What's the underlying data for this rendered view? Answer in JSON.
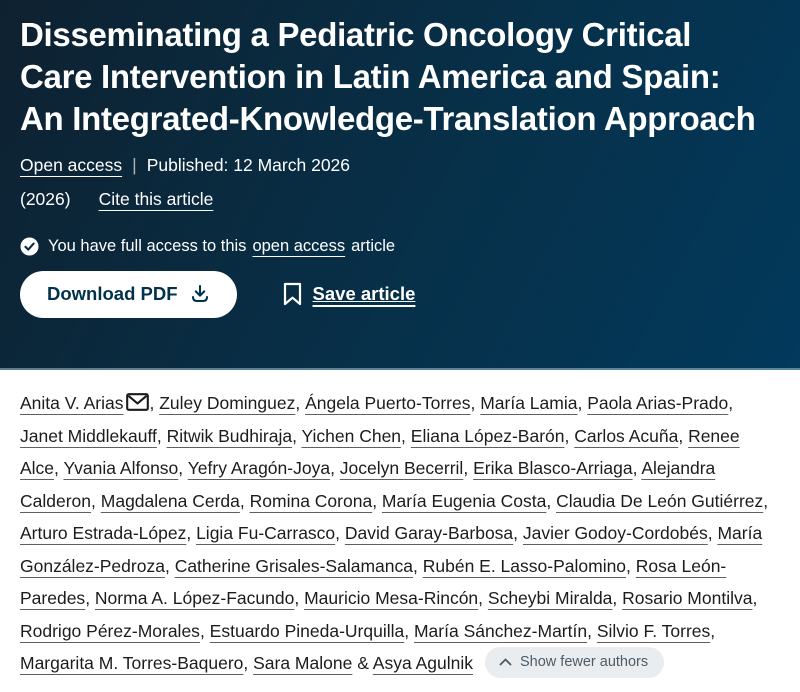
{
  "header": {
    "title": "Disseminating a Pediatric Oncology Critical Care Intervention in Latin America and Spain: An Integrated-Knowledge-Translation Approach",
    "access_type": "Open access",
    "separator": "|",
    "published_text": "Published: 12 March 2026",
    "year": "(2026)",
    "cite_link": "Cite this article",
    "access_note_prefix": "You have full access to this",
    "access_note_link": "open access",
    "access_note_suffix": "article",
    "download_button": "Download PDF",
    "save_button": "Save article"
  },
  "authors": {
    "list": [
      "Anita V. Arias",
      "Zuley Dominguez",
      "Ángela Puerto-Torres",
      "María Lamia",
      "Paola Arias-Prado",
      "Janet Middlekauff",
      "Ritwik Budhiraja",
      "Yichen Chen",
      "Eliana López-Barón",
      "Carlos Acuña",
      "Renee Alce",
      "Yvania Alfonso",
      "Yefry Aragón-Joya",
      "Jocelyn Becerril",
      "Erika Blasco-Arriaga",
      "Alejandra Calderon",
      "Magdalena Cerda",
      "Romina Corona",
      "María Eugenia Costa",
      "Claudia De León Gutiérrez",
      "Arturo Estrada-López",
      "Ligia Fu-Carrasco",
      "David Garay-Barbosa",
      "Javier Godoy-Cordobés",
      "María González-Pedroza",
      "Catherine Grisales-Salamanca",
      "Rubén E. Lasso-Palomino",
      "Rosa León-Paredes",
      "Norma A. López-Facundo",
      "Mauricio Mesa-Rincón",
      "Scheybi Miralda",
      "Rosario Montilva",
      "Rodrigo Pérez-Morales",
      "Estuardo Pineda-Urquilla",
      "María Sánchez-Martín",
      "Silvio F. Torres",
      "Margarita M. Torres-Baquero",
      "Sara Malone",
      "Asya Agulnik"
    ],
    "corresponding_index": 0,
    "last_separator": "&",
    "show_fewer_label": "Show fewer authors"
  },
  "colors": {
    "header_bg_start": "#0e2130",
    "header_bg_mid": "#073049",
    "header_bg_end": "#02395c",
    "button_text": "#01324b",
    "pill_bg": "#e9edef",
    "pill_text": "#4d5b66",
    "body_text": "#1c1c1c"
  }
}
